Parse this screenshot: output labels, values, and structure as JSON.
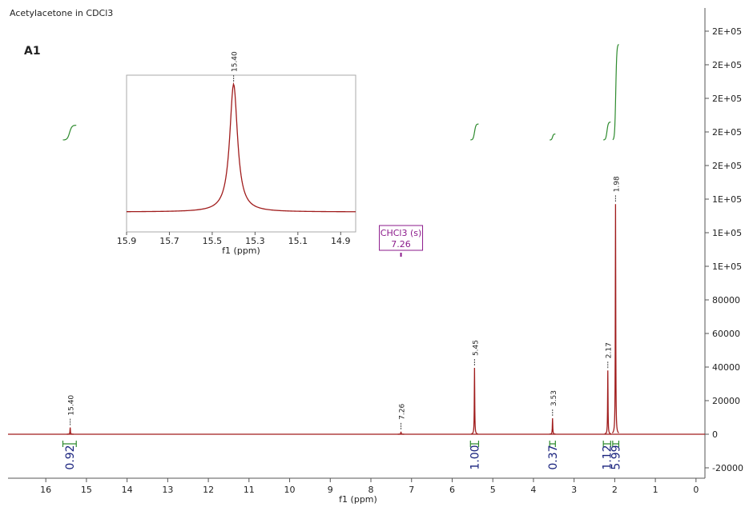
{
  "chart_data": [
    {
      "type": "nmr",
      "title": "Acetylacetone in CDCl3",
      "subtitle": "A1",
      "xlabel": "f1 (ppm)",
      "xlim": [
        16.93,
        -0.22
      ],
      "xticks": [
        16,
        15,
        14,
        13,
        12,
        11,
        10,
        9,
        8,
        7,
        6,
        5,
        4,
        3,
        2,
        1,
        0
      ],
      "ylim": [
        -26190,
        253800
      ],
      "yticks": [
        -20000,
        0,
        20000,
        40000,
        60000,
        80000,
        {
          "value": 100000,
          "label": "1E+05"
        },
        {
          "value": 120000,
          "label": "1E+05"
        },
        {
          "value": 140000,
          "label": "1E+05"
        },
        {
          "value": 160000,
          "label": "2E+05"
        },
        {
          "value": 180000,
          "label": "2E+05"
        },
        {
          "value": 200000,
          "label": "2E+05"
        },
        {
          "value": 220000,
          "label": "2E+05"
        },
        {
          "value": 240000,
          "label": "2E+05"
        }
      ],
      "color": "#a01c1c",
      "peaks": {
        "x": [
          15.4,
          7.26,
          5.45,
          3.53,
          2.17,
          1.98
        ],
        "x_labels": [
          "15.40",
          "7.26",
          "5.45",
          "3.53",
          "2.17",
          "1.98"
        ],
        "values": [
          4000,
          1500,
          39500,
          9500,
          38000,
          137000
        ]
      },
      "integrals": {
        "from": [
          15.58,
          5.55,
          3.6,
          2.28,
          2.05
        ],
        "to": [
          15.25,
          5.35,
          3.46,
          2.1,
          1.9
        ],
        "values": [
          0.92,
          1,
          0.37,
          1.12,
          5.99
        ],
        "value_labels": [
          "0.92",
          "1.00",
          "0.37",
          "1.12",
          "5.99"
        ],
        "color": "#2e8b2e",
        "label_color": "#1a237e"
      },
      "annotation": {
        "text": "CHCl3 (s)",
        "label": "7.26",
        "x": 7.26,
        "color": "#8b1a8b"
      }
    },
    {
      "type": "inset",
      "xlabel": "f1 (ppm)",
      "xlim": [
        15.9,
        14.83
      ],
      "xticks": [
        15.9,
        15.7,
        15.5,
        15.3,
        15.1,
        14.9
      ],
      "ylim": [
        -625,
        4275
      ],
      "color": "#a01c1c",
      "peaks": {
        "x": [
          15.4
        ],
        "x_labels": [
          "15.40"
        ],
        "values": [
          4000
        ]
      }
    }
  ]
}
